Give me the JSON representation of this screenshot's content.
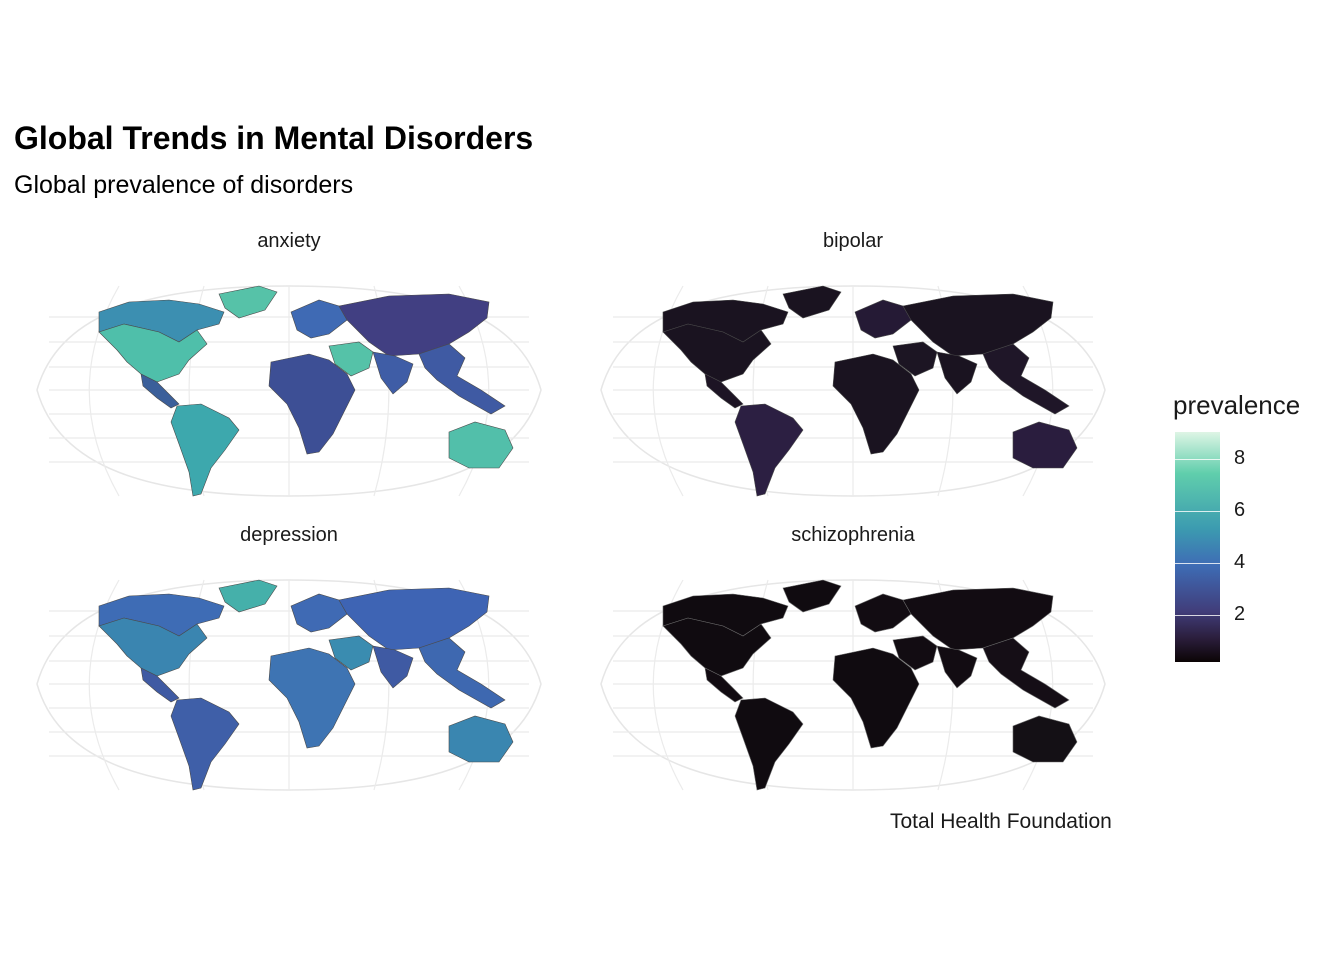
{
  "title": "Global Trends in Mental Disorders",
  "subtitle": "Global prevalence of disorders",
  "caption": "Total Health Foundation",
  "legend": {
    "title": "prevalence",
    "ticks": [
      "8",
      "6",
      "4",
      "2"
    ],
    "colors": [
      "#def5e5",
      "#60ceac",
      "#3c9bb0",
      "#3e6cb5",
      "#413d7a",
      "#2a1d3a",
      "#0b0405"
    ]
  },
  "panels": [
    {
      "label": "anxiety",
      "regions": {
        "north_america": "#4fbfaa",
        "canada": "#3c8fb1",
        "greenland": "#56c2a8",
        "central_america": "#3b5f9a",
        "south_america": "#3da8ad",
        "europe": "#3f6ab4",
        "africa": "#3d4f95",
        "middle_east": "#55c2a8",
        "russia_asia": "#413f82",
        "south_asia": "#3f5da6",
        "southeast_asia": "#3f5aa3",
        "australia": "#52bfaa"
      }
    },
    {
      "label": "bipolar",
      "regions": {
        "north_america": "#1a1320",
        "canada": "#1a1320",
        "greenland": "#1a1320",
        "central_america": "#1d1424",
        "south_america": "#2c1f42",
        "europe": "#251a35",
        "africa": "#1a1320",
        "middle_east": "#1c1523",
        "russia_asia": "#1a1320",
        "south_asia": "#1a1320",
        "southeast_asia": "#1f1628",
        "australia": "#2a1d3e"
      }
    },
    {
      "label": "depression",
      "regions": {
        "north_america": "#3a85b0",
        "canada": "#3e6cb5",
        "greenland": "#45b0aa",
        "central_america": "#3f5aa3",
        "south_america": "#3f5fa8",
        "europe": "#3f6ab4",
        "africa": "#3e74b3",
        "middle_east": "#3a8cb0",
        "russia_asia": "#3e64b4",
        "south_asia": "#3f5aa3",
        "southeast_asia": "#3e68b0",
        "australia": "#3a86b0"
      }
    },
    {
      "label": "schizophrenia",
      "regions": {
        "north_america": "#100b10",
        "canada": "#100b10",
        "greenland": "#100b10",
        "central_america": "#110b11",
        "south_america": "#100b10",
        "europe": "#120c12",
        "africa": "#100b10",
        "middle_east": "#120c12",
        "russia_asia": "#120c12",
        "south_asia": "#120c12",
        "southeast_asia": "#150e16",
        "australia": "#141015"
      }
    }
  ]
}
